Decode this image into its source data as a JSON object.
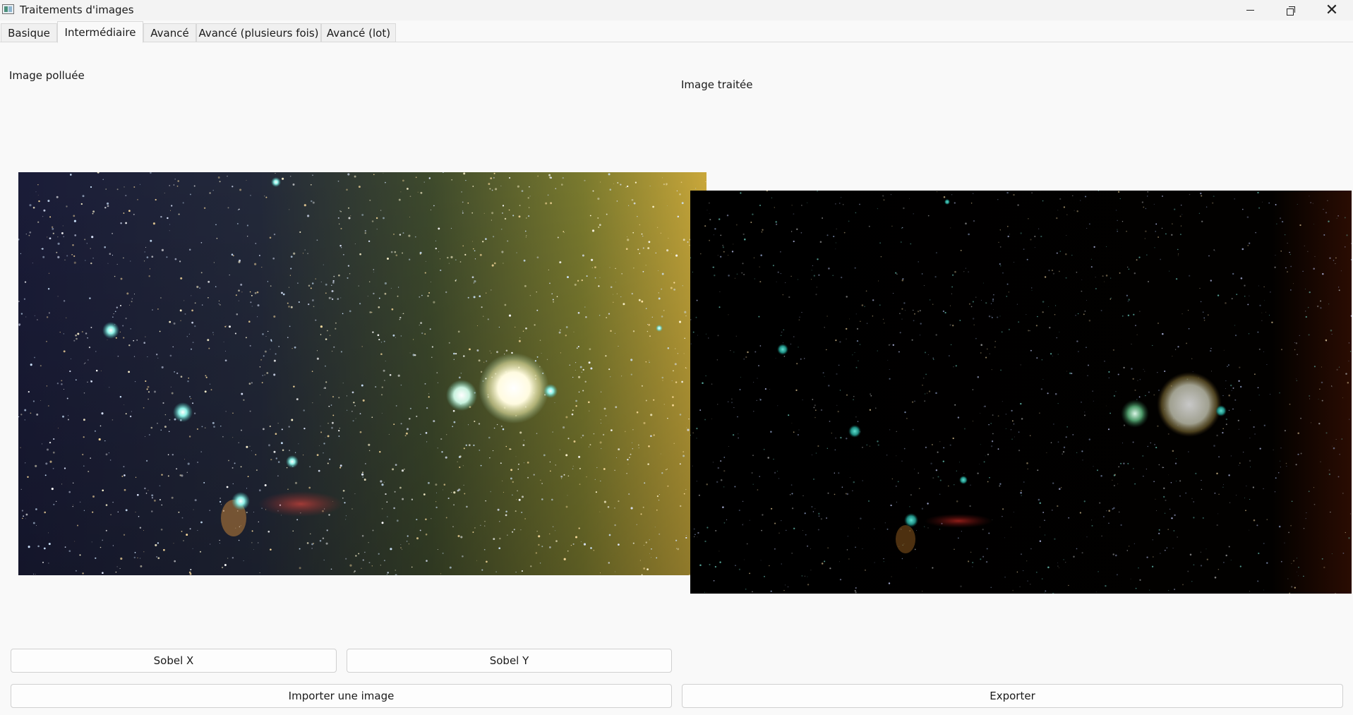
{
  "window": {
    "title": "Traitements d'images",
    "icon": "app-image-icon",
    "controls": [
      "minimize-icon",
      "restore-icon",
      "close-icon"
    ]
  },
  "tabs": [
    {
      "label": "Basique",
      "active": false
    },
    {
      "label": "Intermédiaire",
      "active": true
    },
    {
      "label": "Avancé",
      "active": false
    },
    {
      "label": "Avancé (plusieurs fois)",
      "active": false
    },
    {
      "label": "Avancé (lot)",
      "active": false
    }
  ],
  "main": {
    "polluted_label": "Image polluée",
    "processed_label": "Image traitée"
  },
  "buttons": {
    "sobel_x": "Sobel X",
    "sobel_y": "Sobel Y",
    "import": "Importer une image",
    "export": "Exporter"
  },
  "colors": {
    "background": "#f9f9f9",
    "button_border": "#d0d0d0",
    "polluted_sky_left": "#1c1f3a",
    "polluted_sky_right": "#c9a73a",
    "processed_sky": "#000000"
  }
}
